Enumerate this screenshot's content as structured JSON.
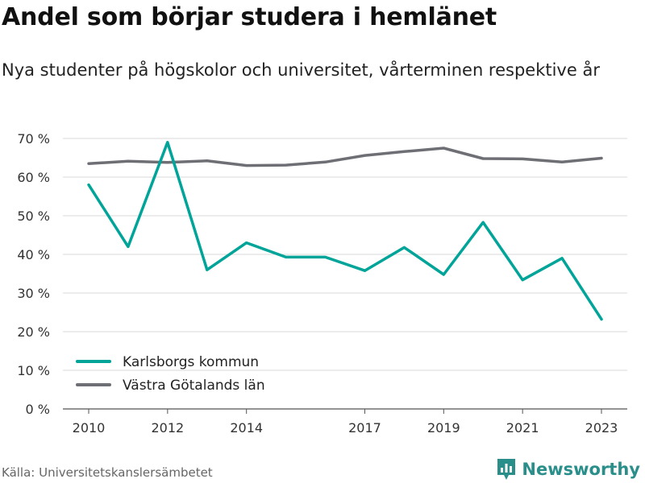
{
  "header": {
    "title": "Andel som börjar studera i hemlänet",
    "subtitle": "Nya studenter på högskolor och universitet, vårterminen respektive år"
  },
  "footer": {
    "source": "Källa: Universitetskanslersämbetet",
    "brand": "Newsworthy"
  },
  "colors": {
    "series_1": "#00a499",
    "series_2": "#6e6e75",
    "brand": "#2a8f8a",
    "grid": "#d9d9d9"
  },
  "icons": {
    "brand_logo": "bar-chart-icon"
  },
  "chart_data": {
    "type": "line",
    "x": [
      2010,
      2011,
      2012,
      2013,
      2014,
      2015,
      2016,
      2017,
      2018,
      2019,
      2020,
      2021,
      2022,
      2023
    ],
    "x_tick_labels": [
      "2010",
      "2012",
      "2014",
      "2017",
      "2019",
      "2021",
      "2023"
    ],
    "y_tick_labels": [
      "0 %",
      "10 %",
      "20 %",
      "30 %",
      "40 %",
      "50 %",
      "60 %",
      "70 %"
    ],
    "ylim": [
      0,
      70
    ],
    "grid": true,
    "legend_position": "bottom-left",
    "series": [
      {
        "name": "Karlsborgs kommun",
        "values": [
          58,
          42,
          69,
          36,
          43,
          39.3,
          39.3,
          35.8,
          41.8,
          34.8,
          48.3,
          33.4,
          39,
          23.2
        ]
      },
      {
        "name": "Västra Götalands län",
        "values": [
          63.5,
          64.1,
          63.8,
          64.2,
          63,
          63.1,
          63.9,
          65.6,
          66.6,
          67.5,
          64.8,
          64.7,
          63.9,
          64.9
        ]
      }
    ]
  }
}
